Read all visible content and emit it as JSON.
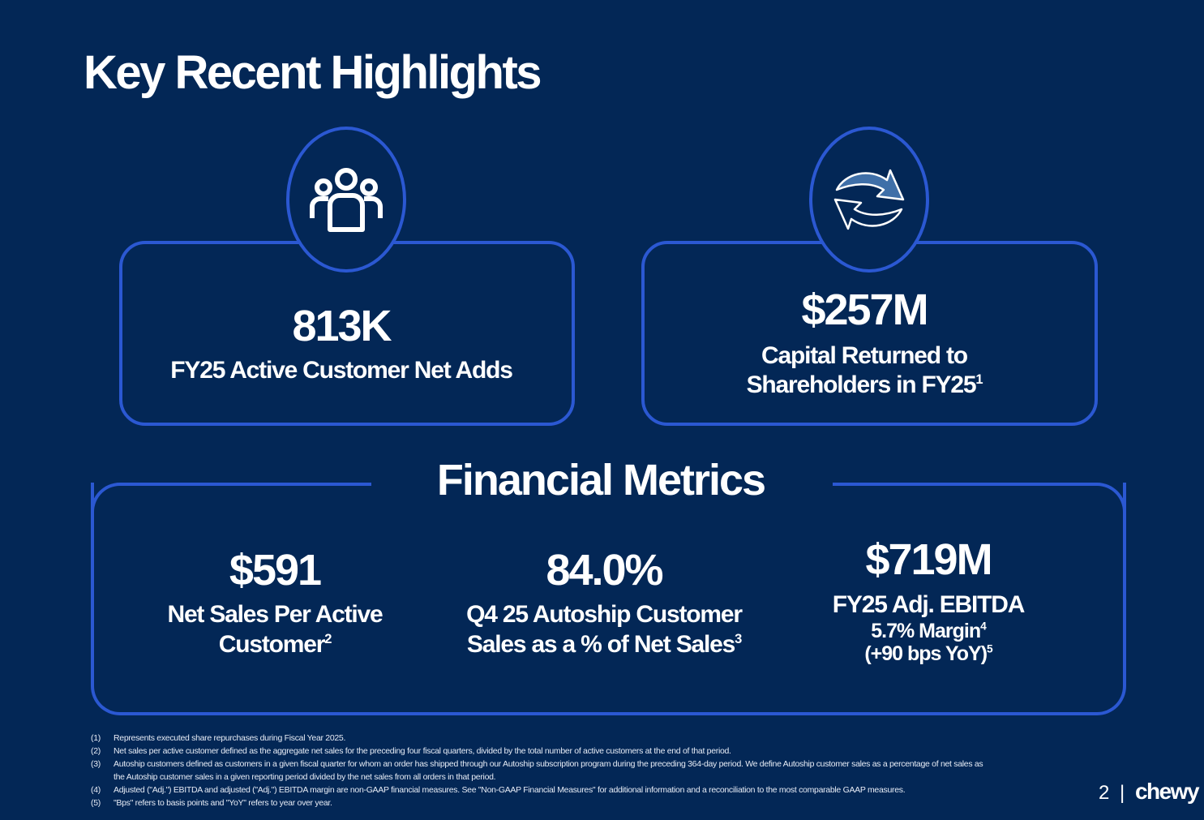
{
  "title": "Key Recent Highlights",
  "highlights": [
    {
      "icon": "people-group-icon",
      "value": "813K",
      "label": "FY25 Active Customer Net Adds"
    },
    {
      "icon": "refresh-arrows-icon",
      "value": "$257M",
      "label_line1": "Capital Returned to",
      "label_line2": "Shareholders in FY25",
      "note": "1"
    }
  ],
  "section_title": "Financial Metrics",
  "metrics": [
    {
      "value": "$591",
      "line1": "Net Sales Per Active",
      "line2": "Customer",
      "note": "2"
    },
    {
      "value": "84.0%",
      "line1": "Q4 25 Autoship Customer",
      "line2": "Sales as a % of Net Sales",
      "note": "3"
    },
    {
      "value": "$719M",
      "line1": "FY25 Adj. EBITDA",
      "line2": "5.7% Margin",
      "note2": "4",
      "line3": "(+90 bps YoY)",
      "note3": "5"
    }
  ],
  "footnotes": [
    {
      "n": "(1)",
      "text": "Represents executed share repurchases during Fiscal Year 2025."
    },
    {
      "n": "(2)",
      "text": "Net sales per active customer defined as the aggregate net sales for the preceding four fiscal quarters, divided by the total number of active customers at the end of that period."
    },
    {
      "n": "(3)",
      "text": "Autoship customers defined as customers in a given fiscal quarter for whom an order has shipped through our Autoship subscription program during the preceding 364-day period. We define Autoship customer sales as a percentage of net sales as",
      "text2": "the Autoship customer sales in a given reporting period divided by the net sales from all orders in that period."
    },
    {
      "n": "(4)",
      "text": "Adjusted (\"Adj.\") EBITDA and adjusted (\"Adj.\") EBITDA margin are non-GAAP financial measures. See \"Non-GAAP Financial Measures\" for additional information and a reconciliation to the most comparable GAAP measures."
    },
    {
      "n": "(5)",
      "text": "\"Bps\" refers to basis points and \"YoY\" refers to year over year."
    }
  ],
  "page_number": "2",
  "separator": "|",
  "logo": "chewy",
  "colors": {
    "background": "#032756",
    "accent": "#2b58d2"
  }
}
